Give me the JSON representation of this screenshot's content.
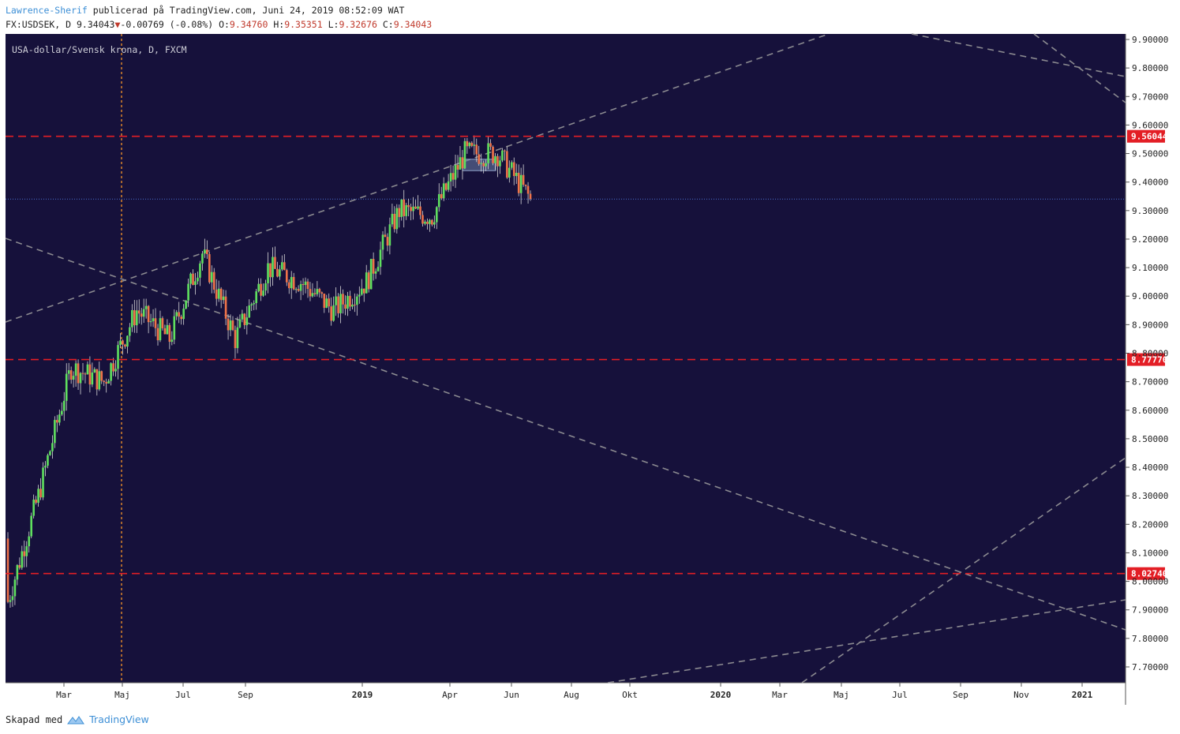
{
  "header": {
    "author": "Lawrence-Sherif",
    "published": "publicerad på TradingView.com, Juni 24, 2019 08:52:09 WAT",
    "symbol_line_prefix": "FX:USDSEK, D 9.34043",
    "change": "-0.00769 (-0.08%)",
    "o_label": "O:",
    "o_value": "9.34760",
    "h_label": "H:",
    "h_value": "9.35351",
    "l_label": "L:",
    "l_value": "9.32676",
    "c_label": "C:",
    "c_value": "9.34043"
  },
  "footer": {
    "created_with": "Skapad med",
    "brand": "TradingView"
  },
  "colors": {
    "background": "#16113b",
    "grid_text": "#d0d0d0",
    "up": "#5fe05f",
    "down": "#f0734a",
    "level_line": "#e31e25",
    "trend_line": "#8b8a90",
    "vertical_marker": "#d9822b"
  },
  "chart_data": {
    "type": "candlestick",
    "title": "USA-dollar/Svensk krona, D, FXCM",
    "ylim": [
      7.64,
      9.93
    ],
    "y_ticks": [
      "9.90000",
      "9.80000",
      "9.70000",
      "9.60000",
      "9.50000",
      "9.40000",
      "9.30000",
      "9.20000",
      "9.10000",
      "9.00000",
      "8.90000",
      "8.80000",
      "8.70000",
      "8.60000",
      "8.50000",
      "8.40000",
      "8.30000",
      "8.20000",
      "8.10000",
      "8.00000",
      "7.90000",
      "7.80000",
      "7.70000"
    ],
    "x_ticks": [
      "Mar",
      "Maj",
      "Jul",
      "Sep",
      "2019",
      "Apr",
      "Jun",
      "Aug",
      "Okt",
      "2020",
      "Mar",
      "Maj",
      "Jul",
      "Sep",
      "Nov",
      "2021"
    ],
    "price_levels": [
      {
        "value": 9.56044,
        "label": "9.56044"
      },
      {
        "value": 8.7777,
        "label": "8.77770"
      },
      {
        "value": 8.0274,
        "label": "8.02740"
      }
    ],
    "last_price": 9.34043,
    "series": [
      {
        "period": "2018 Feb",
        "open": 8.15,
        "close": 7.9
      },
      {
        "period": "2018 Mar",
        "open": 7.9,
        "close": 8.3
      },
      {
        "period": "2018 Apr",
        "open": 8.3,
        "close": 8.75
      },
      {
        "period": "2018 May",
        "open": 8.75,
        "close": 8.7
      },
      {
        "period": "2018 Jun",
        "open": 8.7,
        "close": 8.95
      },
      {
        "period": "2018 Jul",
        "open": 8.95,
        "close": 8.85
      },
      {
        "period": "2018 Aug",
        "open": 8.85,
        "close": 9.15
      },
      {
        "period": "2018 Sep",
        "open": 9.15,
        "close": 8.85
      },
      {
        "period": "2018 Oct",
        "open": 8.85,
        "close": 9.1
      },
      {
        "period": "2018 Nov",
        "open": 9.1,
        "close": 9.05
      },
      {
        "period": "2018 Dec",
        "open": 9.05,
        "close": 8.95
      },
      {
        "period": "2019 Jan",
        "open": 8.95,
        "close": 9.05
      },
      {
        "period": "2019 Feb",
        "open": 9.05,
        "close": 9.3
      },
      {
        "period": "2019 Mar",
        "open": 9.3,
        "close": 9.28
      },
      {
        "period": "2019 Apr",
        "open": 9.28,
        "close": 9.5
      },
      {
        "period": "2019 May",
        "open": 9.5,
        "close": 9.5
      },
      {
        "period": "2019 Jun",
        "open": 9.5,
        "close": 9.34043
      }
    ]
  }
}
